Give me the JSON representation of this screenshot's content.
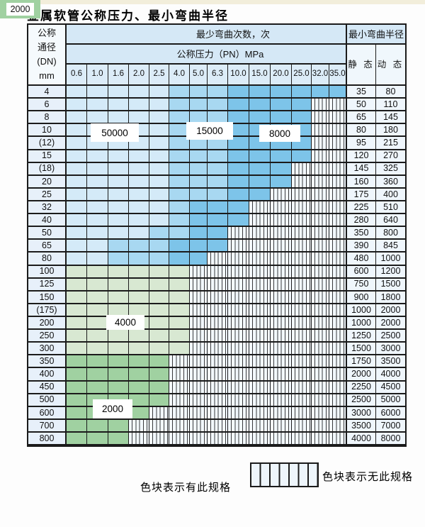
{
  "title": "金属软管公称压力、最小弯曲半径",
  "colors": {
    "b1": "#d4eaf8",
    "b2": "#a8d8f1",
    "b3": "#7dc4e9",
    "g1": "#d8e8d2",
    "g2": "#a0d1a1",
    "header_bg": "#d5e8f6",
    "hatch_bg": "#f3f9fe",
    "border": "#1b1b1b"
  },
  "table": {
    "header": {
      "dn_lines": [
        "公称",
        "通径",
        "(DN)",
        "mm"
      ],
      "bend_cycles": "最少弯曲次数，次",
      "pressure": "公称压力（PN）MPa",
      "min_radius": "最小弯曲半径",
      "static": "静 态",
      "dynamic": "动 态",
      "pressure_columns": [
        "0.6",
        "1.0",
        "1.6",
        "2.0",
        "2.5",
        "4.0",
        "5.0",
        "6.3",
        "10.0",
        "15.0",
        "20.0",
        "25.0",
        "32.0",
        "35.0"
      ]
    },
    "cell_legend_meaning": {
      "b1": "50000",
      "b2": "15000",
      "b3": "8000",
      "g1": "4000",
      "g2": "2000",
      "x": "无此规格"
    },
    "rows": [
      {
        "dn": "4",
        "cells": [
          "b1",
          "b1",
          "b1",
          "b1",
          "b1",
          "b2",
          "b2",
          "b2",
          "b3",
          "b3",
          "b3",
          "b3",
          "b3",
          "b3"
        ],
        "static": "35",
        "dynamic": "80"
      },
      {
        "dn": "6",
        "cells": [
          "b1",
          "b1",
          "b1",
          "b1",
          "b1",
          "b2",
          "b2",
          "b2",
          "b3",
          "b3",
          "b3",
          "b3",
          "x",
          "x"
        ],
        "static": "50",
        "dynamic": "110"
      },
      {
        "dn": "8",
        "cells": [
          "b1",
          "b1",
          "b1",
          "b1",
          "b1",
          "b2",
          "b2",
          "b2",
          "b3",
          "b3",
          "b3",
          "b3",
          "x",
          "x"
        ],
        "static": "65",
        "dynamic": "145"
      },
      {
        "dn": "10",
        "cells": [
          "b1",
          "b1",
          "b1",
          "b1",
          "b1",
          "b2",
          "b2",
          "b2",
          "b3",
          "b3",
          "b3",
          "b3",
          "x",
          "x"
        ],
        "static": "80",
        "dynamic": "180"
      },
      {
        "dn": "(12)",
        "cells": [
          "b1",
          "b1",
          "b1",
          "b1",
          "b1",
          "b2",
          "b2",
          "b2",
          "b3",
          "b3",
          "b3",
          "b3",
          "x",
          "x"
        ],
        "static": "95",
        "dynamic": "215"
      },
      {
        "dn": "15",
        "cells": [
          "b1",
          "b1",
          "b1",
          "b1",
          "b1",
          "b2",
          "b2",
          "b2",
          "b3",
          "b3",
          "b3",
          "b3",
          "x",
          "x"
        ],
        "static": "120",
        "dynamic": "270"
      },
      {
        "dn": "(18)",
        "cells": [
          "b1",
          "b1",
          "b1",
          "b1",
          "b1",
          "b2",
          "b2",
          "b2",
          "b3",
          "b3",
          "b3",
          "x",
          "x",
          "x"
        ],
        "static": "145",
        "dynamic": "325"
      },
      {
        "dn": "20",
        "cells": [
          "b1",
          "b1",
          "b1",
          "b1",
          "b1",
          "b2",
          "b2",
          "b2",
          "b3",
          "b3",
          "b3",
          "x",
          "x",
          "x"
        ],
        "static": "160",
        "dynamic": "360"
      },
      {
        "dn": "25",
        "cells": [
          "b1",
          "b1",
          "b1",
          "b1",
          "b1",
          "b2",
          "b2",
          "b2",
          "b3",
          "b3",
          "x",
          "x",
          "x",
          "x"
        ],
        "static": "175",
        "dynamic": "400"
      },
      {
        "dn": "32",
        "cells": [
          "b1",
          "b1",
          "b1",
          "b1",
          "b1",
          "b2",
          "b3",
          "b3",
          "b3",
          "x",
          "x",
          "x",
          "x",
          "x"
        ],
        "static": "225",
        "dynamic": "510"
      },
      {
        "dn": "40",
        "cells": [
          "b1",
          "b1",
          "b1",
          "b1",
          "b1",
          "b2",
          "b3",
          "b3",
          "b3",
          "x",
          "x",
          "x",
          "x",
          "x"
        ],
        "static": "280",
        "dynamic": "640"
      },
      {
        "dn": "50",
        "cells": [
          "b1",
          "b1",
          "b1",
          "b1",
          "b2",
          "b2",
          "b3",
          "b3",
          "x",
          "x",
          "x",
          "x",
          "x",
          "x"
        ],
        "static": "350",
        "dynamic": "800"
      },
      {
        "dn": "65",
        "cells": [
          "b1",
          "b1",
          "b2",
          "b2",
          "b2",
          "b3",
          "b3",
          "b3",
          "x",
          "x",
          "x",
          "x",
          "x",
          "x"
        ],
        "static": "390",
        "dynamic": "845"
      },
      {
        "dn": "80",
        "cells": [
          "b1",
          "b1",
          "b2",
          "b2",
          "b2",
          "b3",
          "b3",
          "x",
          "x",
          "x",
          "x",
          "x",
          "x",
          "x"
        ],
        "static": "480",
        "dynamic": "1000"
      },
      {
        "dn": "100",
        "cells": [
          "g1",
          "g1",
          "g1",
          "g1",
          "g1",
          "g1",
          "x",
          "x",
          "x",
          "x",
          "x",
          "x",
          "x",
          "x"
        ],
        "static": "600",
        "dynamic": "1200"
      },
      {
        "dn": "125",
        "cells": [
          "g1",
          "g1",
          "g1",
          "g1",
          "g1",
          "g1",
          "x",
          "x",
          "x",
          "x",
          "x",
          "x",
          "x",
          "x"
        ],
        "static": "750",
        "dynamic": "1500"
      },
      {
        "dn": "150",
        "cells": [
          "g1",
          "g1",
          "g1",
          "g1",
          "g1",
          "g1",
          "x",
          "x",
          "x",
          "x",
          "x",
          "x",
          "x",
          "x"
        ],
        "static": "900",
        "dynamic": "1800"
      },
      {
        "dn": "(175)",
        "cells": [
          "g1",
          "g1",
          "g1",
          "g1",
          "g1",
          "g1",
          "x",
          "x",
          "x",
          "x",
          "x",
          "x",
          "x",
          "x"
        ],
        "static": "1000",
        "dynamic": "2000"
      },
      {
        "dn": "200",
        "cells": [
          "g1",
          "g1",
          "g1",
          "g1",
          "g1",
          "g1",
          "x",
          "x",
          "x",
          "x",
          "x",
          "x",
          "x",
          "x"
        ],
        "static": "1000",
        "dynamic": "2000"
      },
      {
        "dn": "250",
        "cells": [
          "g1",
          "g1",
          "g1",
          "g1",
          "g1",
          "g1",
          "x",
          "x",
          "x",
          "x",
          "x",
          "x",
          "x",
          "x"
        ],
        "static": "1250",
        "dynamic": "2500"
      },
      {
        "dn": "300",
        "cells": [
          "g1",
          "g1",
          "g1",
          "g1",
          "g1",
          "g1",
          "x",
          "x",
          "x",
          "x",
          "x",
          "x",
          "x",
          "x"
        ],
        "static": "1500",
        "dynamic": "3000"
      },
      {
        "dn": "350",
        "cells": [
          "g2",
          "g2",
          "g2",
          "g2",
          "g2",
          "x",
          "x",
          "x",
          "x",
          "x",
          "x",
          "x",
          "x",
          "x"
        ],
        "static": "1750",
        "dynamic": "3500"
      },
      {
        "dn": "400",
        "cells": [
          "g2",
          "g2",
          "g2",
          "g2",
          "g2",
          "x",
          "x",
          "x",
          "x",
          "x",
          "x",
          "x",
          "x",
          "x"
        ],
        "static": "2000",
        "dynamic": "4000"
      },
      {
        "dn": "450",
        "cells": [
          "g2",
          "g2",
          "g2",
          "g2",
          "g2",
          "x",
          "x",
          "x",
          "x",
          "x",
          "x",
          "x",
          "x",
          "x"
        ],
        "static": "2250",
        "dynamic": "4500"
      },
      {
        "dn": "500",
        "cells": [
          "g2",
          "g2",
          "g2",
          "g2",
          "g2",
          "x",
          "x",
          "x",
          "x",
          "x",
          "x",
          "x",
          "x",
          "x"
        ],
        "static": "2500",
        "dynamic": "5000"
      },
      {
        "dn": "600",
        "cells": [
          "g2",
          "g2",
          "g2",
          "g2",
          "x",
          "x",
          "x",
          "x",
          "x",
          "x",
          "x",
          "x",
          "x",
          "x"
        ],
        "static": "3000",
        "dynamic": "6000"
      },
      {
        "dn": "700",
        "cells": [
          "g2",
          "g2",
          "g2",
          "x",
          "x",
          "x",
          "x",
          "x",
          "x",
          "x",
          "x",
          "x",
          "x",
          "x"
        ],
        "static": "3500",
        "dynamic": "7000"
      },
      {
        "dn": "800",
        "cells": [
          "g2",
          "g2",
          "g2",
          "x",
          "x",
          "x",
          "x",
          "x",
          "x",
          "x",
          "x",
          "x",
          "x",
          "x"
        ],
        "static": "4000",
        "dynamic": "8000"
      }
    ]
  },
  "overlay_labels": {
    "cycles_50000": "50000",
    "cycles_15000": "15000",
    "cycles_8000": "8000",
    "cycles_4000": "4000",
    "cycles_2000": "2000"
  },
  "legend": {
    "swatches": [
      {
        "label": "50000",
        "color": "b1"
      },
      {
        "label": "15000",
        "color": "b2"
      },
      {
        "label": "8000",
        "color": "b3"
      },
      {
        "label": "4000",
        "color": "g1"
      },
      {
        "label": "2000",
        "color": "g2"
      }
    ],
    "has_spec_text": "色块表示有此规格",
    "no_spec_text": "色块表示无此规格"
  }
}
